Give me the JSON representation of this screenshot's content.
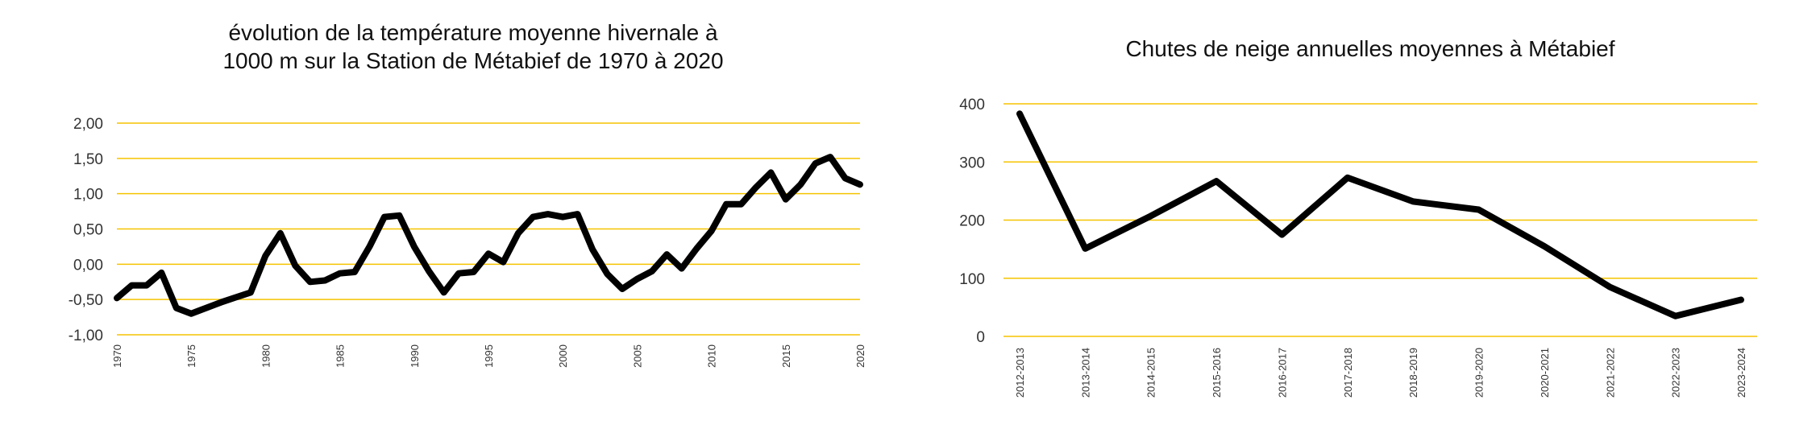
{
  "chart_data": [
    {
      "type": "line",
      "title": "évolution de la température moyenne hivernale à",
      "title_line2": "1000 m sur la Station de Métabief de 1970 à 2020",
      "xlabel": "",
      "ylabel": "",
      "ylim": [
        -1.0,
        2.0
      ],
      "xlim": [
        1970,
        2020
      ],
      "y_tick_labels": [
        "-1,00",
        "-0,50",
        "0,00",
        "0,50",
        "1,00",
        "1,50",
        "2,00"
      ],
      "x_tick_labels": [
        "1970",
        "1975",
        "1980",
        "1985",
        "1990",
        "1995",
        "2000",
        "2005",
        "2010",
        "2015",
        "2020"
      ],
      "grid": true,
      "grid_color": "#f5c400",
      "line_color": "#000000",
      "series": [
        {
          "x": [
            1970,
            1971,
            1972,
            1973,
            1974,
            1975,
            1976,
            1977,
            1978,
            1979,
            1980,
            1981,
            1982,
            1983,
            1984,
            1985,
            1986,
            1987,
            1988,
            1989,
            1990,
            1991,
            1992,
            1993,
            1994,
            1995,
            1996,
            1997,
            1998,
            1999,
            2000,
            2001,
            2002,
            2003,
            2004,
            2005,
            2006,
            2007,
            2008,
            2009,
            2010,
            2011,
            2012,
            2013,
            2014,
            2015,
            2016,
            2017,
            2018,
            2019,
            2020
          ],
          "y": [
            -0.48,
            -0.3,
            -0.3,
            -0.12,
            -0.62,
            -0.7,
            -0.62,
            -0.54,
            -0.47,
            -0.4,
            0.12,
            0.44,
            -0.02,
            -0.25,
            -0.23,
            -0.13,
            -0.11,
            0.25,
            0.67,
            0.69,
            0.25,
            -0.1,
            -0.4,
            -0.13,
            -0.11,
            0.15,
            0.03,
            0.44,
            0.67,
            0.71,
            0.67,
            0.71,
            0.21,
            -0.14,
            -0.35,
            -0.21,
            -0.1,
            0.14,
            -0.06,
            0.22,
            0.47,
            0.85,
            0.85,
            1.09,
            1.3,
            0.92,
            1.13,
            1.43,
            1.52,
            1.22,
            1.13
          ]
        }
      ]
    },
    {
      "type": "line",
      "title": "Chutes de neige annuelles moyennes à Métabief",
      "xlabel": "",
      "ylabel": "",
      "ylim": [
        0,
        400
      ],
      "y_tick_labels": [
        "0",
        "100",
        "200",
        "300",
        "400"
      ],
      "categories": [
        "2012-2013",
        "2013-2014",
        "2014-2015",
        "2015-2016",
        "2016-2017",
        "2017-2018",
        "2018-2019",
        "2019-2020",
        "2020-2021",
        "2021-2022",
        "2022-2023",
        "2023-2024"
      ],
      "grid": true,
      "grid_color": "#f5c400",
      "line_color": "#000000",
      "series": [
        {
          "values": [
            383,
            151,
            207,
            267,
            175,
            273,
            232,
            218,
            155,
            85,
            35,
            63
          ]
        }
      ]
    }
  ]
}
